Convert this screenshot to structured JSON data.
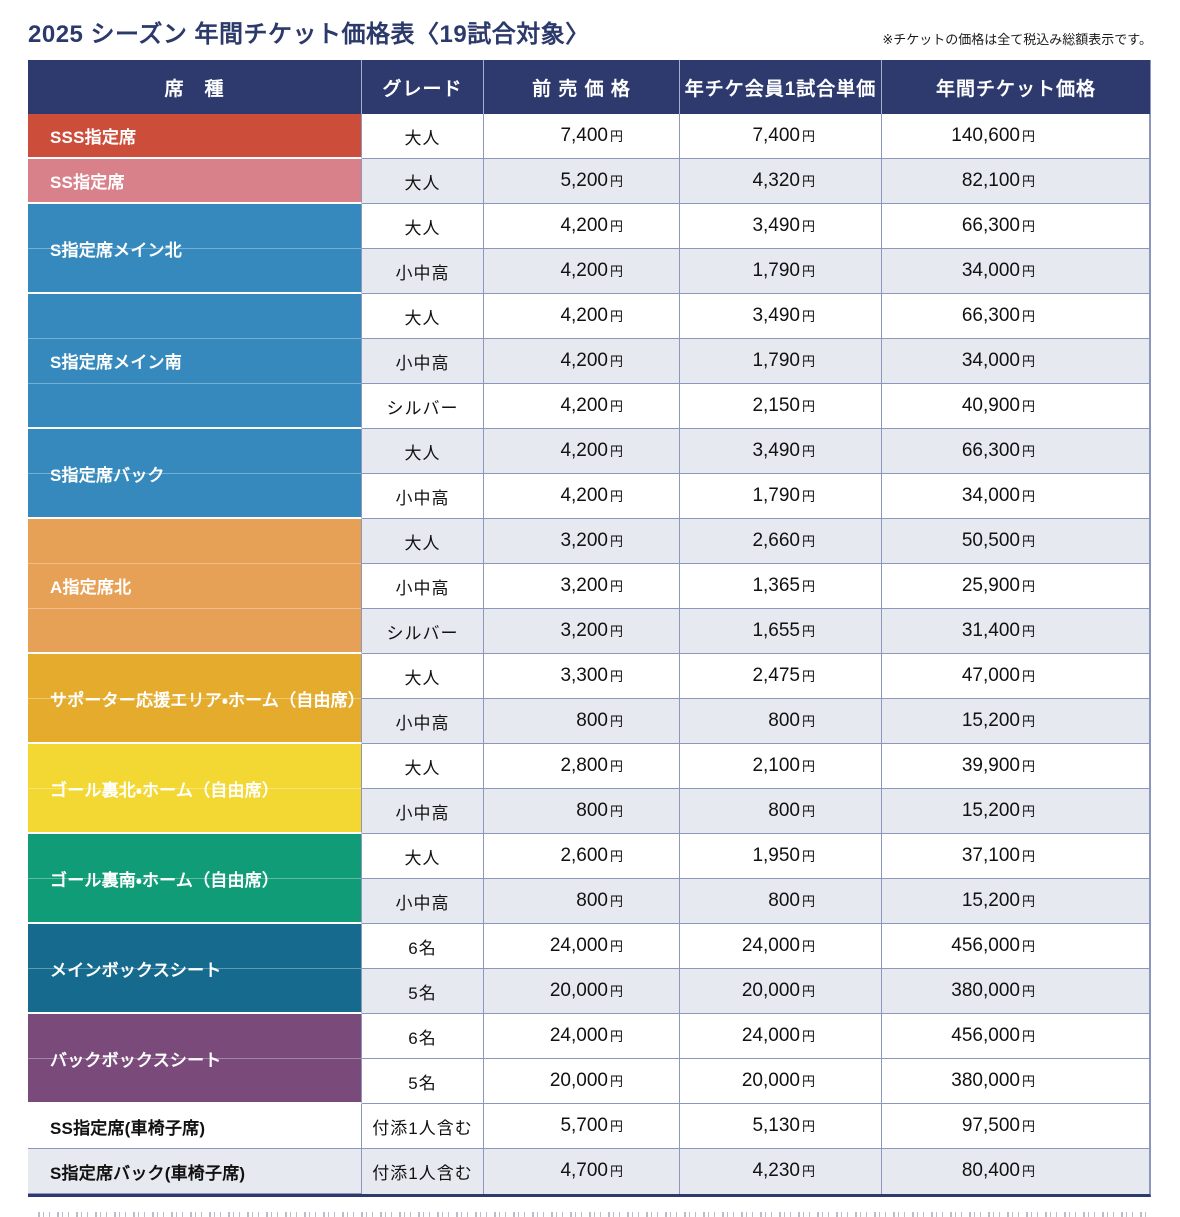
{
  "page": {
    "title": "2025 シーズン 年間チケット価格表〈19試合対象〉",
    "note": "※チケットの価格は全て税込み総額表示です。"
  },
  "colors": {
    "header_navy": "#2e3a6e",
    "title_navy": "#2c3a6b",
    "row_shade": "#e7e9f1",
    "grid_border": "#8d96bd"
  },
  "table": {
    "currency": "円",
    "headers": [
      "席　種",
      "グレード",
      "前 売 価 格",
      "年チケ会員1試合単価",
      "年間チケット価格"
    ],
    "groups": [
      {
        "seat": "SSS指定席",
        "color": "#cb4d3a",
        "colored": true,
        "rows": [
          {
            "grade": "大人",
            "advance": "7,400",
            "member_unit": "7,400",
            "annual": "140,600",
            "shade": false
          }
        ]
      },
      {
        "seat": "SS指定席",
        "color": "#d9818b",
        "colored": true,
        "rows": [
          {
            "grade": "大人",
            "advance": "5,200",
            "member_unit": "4,320",
            "annual": "82,100",
            "shade": true
          }
        ]
      },
      {
        "seat": "S指定席メイン北",
        "color": "#3689bc",
        "colored": true,
        "rows": [
          {
            "grade": "大人",
            "advance": "4,200",
            "member_unit": "3,490",
            "annual": "66,300",
            "shade": false
          },
          {
            "grade": "小中高",
            "advance": "4,200",
            "member_unit": "1,790",
            "annual": "34,000",
            "shade": true
          }
        ]
      },
      {
        "seat": "S指定席メイン南",
        "color": "#3689bc",
        "colored": true,
        "rows": [
          {
            "grade": "大人",
            "advance": "4,200",
            "member_unit": "3,490",
            "annual": "66,300",
            "shade": false
          },
          {
            "grade": "小中高",
            "advance": "4,200",
            "member_unit": "1,790",
            "annual": "34,000",
            "shade": true
          },
          {
            "grade": "シルバー",
            "advance": "4,200",
            "member_unit": "2,150",
            "annual": "40,900",
            "shade": false
          }
        ]
      },
      {
        "seat": "S指定席バック",
        "color": "#3689bc",
        "colored": true,
        "rows": [
          {
            "grade": "大人",
            "advance": "4,200",
            "member_unit": "3,490",
            "annual": "66,300",
            "shade": true
          },
          {
            "grade": "小中高",
            "advance": "4,200",
            "member_unit": "1,790",
            "annual": "34,000",
            "shade": false
          }
        ]
      },
      {
        "seat": "A指定席北",
        "color": "#e6a156",
        "colored": true,
        "rows": [
          {
            "grade": "大人",
            "advance": "3,200",
            "member_unit": "2,660",
            "annual": "50,500",
            "shade": true
          },
          {
            "grade": "小中高",
            "advance": "3,200",
            "member_unit": "1,365",
            "annual": "25,900",
            "shade": false
          },
          {
            "grade": "シルバー",
            "advance": "3,200",
            "member_unit": "1,655",
            "annual": "31,400",
            "shade": true
          }
        ]
      },
      {
        "seat": "サポーター応援エリア・ホーム（自由席）",
        "color": "#e4ab2d",
        "colored": true,
        "rows": [
          {
            "grade": "大人",
            "advance": "3,300",
            "member_unit": "2,475",
            "annual": "47,000",
            "shade": false
          },
          {
            "grade": "小中高",
            "advance": "800",
            "member_unit": "800",
            "annual": "15,200",
            "shade": true
          }
        ]
      },
      {
        "seat": "ゴール裏北・ホーム（自由席）",
        "color": "#f3d833",
        "colored": true,
        "rows": [
          {
            "grade": "大人",
            "advance": "2,800",
            "member_unit": "2,100",
            "annual": "39,900",
            "shade": false
          },
          {
            "grade": "小中高",
            "advance": "800",
            "member_unit": "800",
            "annual": "15,200",
            "shade": true
          }
        ]
      },
      {
        "seat": "ゴール裏南・ホーム（自由席）",
        "color": "#119c78",
        "colored": true,
        "rows": [
          {
            "grade": "大人",
            "advance": "2,600",
            "member_unit": "1,950",
            "annual": "37,100",
            "shade": false
          },
          {
            "grade": "小中高",
            "advance": "800",
            "member_unit": "800",
            "annual": "15,200",
            "shade": true
          }
        ]
      },
      {
        "seat": "メインボックスシート",
        "color": "#156a8e",
        "colored": true,
        "rows": [
          {
            "grade": "6名",
            "advance": "24,000",
            "member_unit": "24,000",
            "annual": "456,000",
            "shade": false
          },
          {
            "grade": "5名",
            "advance": "20,000",
            "member_unit": "20,000",
            "annual": "380,000",
            "shade": true
          }
        ]
      },
      {
        "seat": "バックボックスシート",
        "color": "#7a4b7a",
        "colored": true,
        "rows": [
          {
            "grade": "6名",
            "advance": "24,000",
            "member_unit": "24,000",
            "annual": "456,000",
            "shade": false
          },
          {
            "grade": "5名",
            "advance": "20,000",
            "member_unit": "20,000",
            "annual": "380,000",
            "shade": false
          }
        ]
      },
      {
        "seat": "SS指定席(車椅子席)",
        "colored": false,
        "rows": [
          {
            "grade": "付添1人含む",
            "advance": "5,700",
            "member_unit": "5,130",
            "annual": "97,500",
            "shade": false
          }
        ]
      },
      {
        "seat": "S指定席バック(車椅子席)",
        "colored": false,
        "rows": [
          {
            "grade": "付添1人含む",
            "advance": "4,700",
            "member_unit": "4,230",
            "annual": "80,400",
            "shade": true
          }
        ]
      }
    ]
  }
}
